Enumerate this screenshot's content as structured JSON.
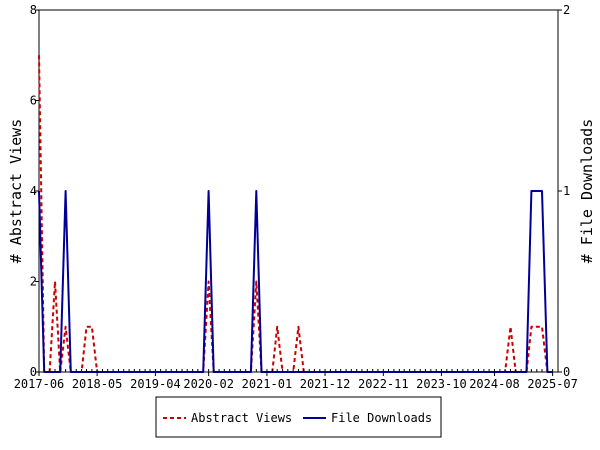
{
  "chart_data": {
    "type": "line",
    "x_axis": {
      "type": "date",
      "range": [
        "2017-06-01",
        "2025-08-01"
      ],
      "ticks": [
        "2017-06",
        "2018-05",
        "2019-04",
        "2020-02",
        "2021-01",
        "2021-12",
        "2022-11",
        "2023-10",
        "2024-08",
        "2025-07"
      ],
      "tick_dates": [
        "2017-06-01",
        "2018-05-01",
        "2019-04-01",
        "2020-02-01",
        "2021-01-01",
        "2021-12-01",
        "2022-11-01",
        "2023-10-01",
        "2024-08-01",
        "2025-07-01"
      ]
    },
    "y_left": {
      "label": "# Abstract Views",
      "ylim": [
        0,
        8
      ],
      "ticks": [
        "0",
        "2",
        "4",
        "6",
        "8"
      ],
      "tick_values": [
        0,
        2,
        4,
        6,
        8
      ]
    },
    "y_right": {
      "label": "# File Downloads",
      "ylim": [
        0,
        2
      ],
      "ticks": [
        "0",
        "1",
        "2"
      ],
      "tick_values": [
        0,
        1,
        2
      ]
    },
    "legend": {
      "placement": "bottom"
    },
    "series": [
      {
        "name": "Abstract Views",
        "axis": "left",
        "color": "#cc0000",
        "style": "dashed",
        "points": [
          [
            "2017-06-01",
            7
          ],
          [
            "2017-07-01",
            0
          ],
          [
            "2017-08-01",
            0
          ],
          [
            "2017-09-01",
            2
          ],
          [
            "2017-10-01",
            0
          ],
          [
            "2017-11-01",
            1
          ],
          [
            "2017-12-01",
            0
          ],
          [
            "2018-01-01",
            0
          ],
          [
            "2018-02-01",
            0
          ],
          [
            "2018-03-01",
            1
          ],
          [
            "2018-04-01",
            1
          ],
          [
            "2018-05-01",
            0
          ],
          [
            "2020-01-01",
            0
          ],
          [
            "2020-02-01",
            2
          ],
          [
            "2020-03-01",
            0
          ],
          [
            "2020-10-01",
            0
          ],
          [
            "2020-11-01",
            2
          ],
          [
            "2020-12-01",
            0
          ],
          [
            "2021-02-01",
            0
          ],
          [
            "2021-03-01",
            1
          ],
          [
            "2021-04-01",
            0
          ],
          [
            "2021-06-01",
            0
          ],
          [
            "2021-07-01",
            1
          ],
          [
            "2021-08-01",
            0
          ],
          [
            "2024-10-01",
            0
          ],
          [
            "2024-11-01",
            1
          ],
          [
            "2024-12-01",
            0
          ],
          [
            "2025-02-01",
            0
          ],
          [
            "2025-03-01",
            1
          ],
          [
            "2025-04-01",
            1
          ],
          [
            "2025-05-01",
            1
          ],
          [
            "2025-06-01",
            0
          ],
          [
            "2025-07-01",
            0
          ]
        ]
      },
      {
        "name": "File Downloads",
        "axis": "right",
        "color": "#000099",
        "style": "solid",
        "points": [
          [
            "2017-06-01",
            1
          ],
          [
            "2017-07-01",
            0
          ],
          [
            "2017-08-01",
            0
          ],
          [
            "2017-09-01",
            0
          ],
          [
            "2017-10-01",
            0
          ],
          [
            "2017-11-01",
            1
          ],
          [
            "2017-12-01",
            0
          ],
          [
            "2018-01-01",
            0
          ],
          [
            "2020-01-01",
            0
          ],
          [
            "2020-02-01",
            1
          ],
          [
            "2020-03-01",
            0
          ],
          [
            "2020-10-01",
            0
          ],
          [
            "2020-11-01",
            1
          ],
          [
            "2020-12-01",
            0
          ],
          [
            "2025-01-01",
            0
          ],
          [
            "2025-02-01",
            0
          ],
          [
            "2025-03-01",
            1
          ],
          [
            "2025-04-01",
            1
          ],
          [
            "2025-05-01",
            1
          ],
          [
            "2025-06-01",
            0
          ],
          [
            "2025-07-01",
            0
          ]
        ]
      }
    ]
  }
}
